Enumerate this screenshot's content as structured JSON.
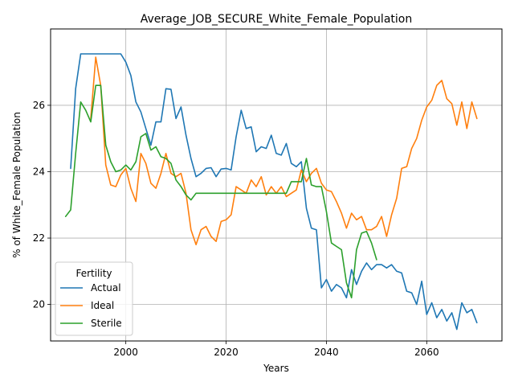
{
  "chart_data": {
    "type": "line",
    "title": "Average_JOB_SECURE_White_Female_Population",
    "xlabel": "Years",
    "ylabel": "% of White_Female Population",
    "xlim": [
      1985,
      2075
    ],
    "ylim": [
      18.9,
      28.3
    ],
    "xticks": [
      2000,
      2020,
      2040,
      2060
    ],
    "yticks": [
      20,
      22,
      24,
      26
    ],
    "grid": true,
    "legend": {
      "title": "Fertility",
      "position": "lower-left"
    },
    "series": [
      {
        "name": "Actual",
        "color": "#1f77b4",
        "x": [
          1989,
          1990,
          1991,
          1992,
          1993,
          1994,
          1995,
          1996,
          1997,
          1998,
          1999,
          2000,
          2001,
          2002,
          2003,
          2004,
          2005,
          2006,
          2007,
          2008,
          2009,
          2010,
          2011,
          2012,
          2013,
          2014,
          2015,
          2016,
          2017,
          2018,
          2019,
          2020,
          2021,
          2022,
          2023,
          2024,
          2025,
          2026,
          2027,
          2028,
          2029,
          2030,
          2031,
          2032,
          2033,
          2034,
          2035,
          2036,
          2037,
          2038,
          2039,
          2040,
          2041,
          2042,
          2043,
          2044,
          2045,
          2046,
          2047,
          2048,
          2049,
          2050,
          2051,
          2052,
          2053,
          2054,
          2055,
          2056,
          2057,
          2058,
          2059,
          2060,
          2061,
          2062,
          2063,
          2064,
          2065,
          2066,
          2067,
          2068,
          2069,
          2070
        ],
        "values": [
          24.1,
          26.5,
          27.55,
          27.55,
          27.55,
          27.55,
          27.55,
          27.55,
          27.55,
          27.55,
          27.55,
          27.3,
          26.9,
          26.1,
          25.8,
          25.3,
          24.8,
          25.5,
          25.5,
          26.5,
          26.48,
          25.6,
          25.95,
          25.1,
          24.4,
          23.85,
          23.95,
          24.1,
          24.12,
          23.85,
          24.08,
          24.1,
          24.05,
          25.05,
          25.85,
          25.3,
          25.35,
          24.6,
          24.75,
          24.7,
          25.1,
          24.55,
          24.5,
          24.85,
          24.25,
          24.15,
          24.3,
          22.9,
          22.3,
          22.25,
          20.5,
          20.75,
          20.4,
          20.6,
          20.5,
          20.2,
          21.05,
          20.6,
          21.0,
          21.25,
          21.05,
          21.2,
          21.2,
          21.1,
          21.2,
          21.0,
          20.95,
          20.4,
          20.35,
          20.0,
          20.7,
          19.7,
          20.05,
          19.6,
          19.85,
          19.5,
          19.75,
          19.25,
          20.05,
          19.75,
          19.85,
          19.45
        ]
      },
      {
        "name": "Ideal",
        "color": "#ff7f0e",
        "x": [
          1993,
          1994,
          1995,
          1996,
          1997,
          1998,
          1999,
          2000,
          2001,
          2002,
          2003,
          2004,
          2005,
          2006,
          2007,
          2008,
          2009,
          2010,
          2011,
          2012,
          2013,
          2014,
          2015,
          2016,
          2017,
          2018,
          2019,
          2020,
          2021,
          2022,
          2023,
          2024,
          2025,
          2026,
          2027,
          2028,
          2029,
          2030,
          2031,
          2032,
          2033,
          2034,
          2035,
          2036,
          2037,
          2038,
          2039,
          2040,
          2041,
          2042,
          2043,
          2044,
          2045,
          2046,
          2047,
          2048,
          2049,
          2050,
          2051,
          2052,
          2053,
          2054,
          2055,
          2056,
          2057,
          2058,
          2059,
          2060,
          2061,
          2062,
          2063,
          2064,
          2065,
          2066,
          2067,
          2068,
          2069,
          2070
        ],
        "values": [
          25.6,
          27.45,
          26.6,
          24.2,
          23.6,
          23.55,
          23.9,
          24.1,
          23.5,
          23.1,
          24.55,
          24.25,
          23.65,
          23.5,
          23.95,
          24.55,
          23.95,
          23.85,
          23.95,
          23.35,
          22.25,
          21.8,
          22.25,
          22.35,
          22.05,
          21.9,
          22.5,
          22.55,
          22.7,
          23.55,
          23.45,
          23.35,
          23.75,
          23.55,
          23.85,
          23.3,
          23.55,
          23.35,
          23.55,
          23.25,
          23.35,
          23.45,
          24.05,
          23.7,
          23.95,
          24.1,
          23.65,
          23.45,
          23.4,
          23.1,
          22.75,
          22.3,
          22.75,
          22.55,
          22.65,
          22.25,
          22.25,
          22.35,
          22.65,
          22.05,
          22.7,
          23.2,
          24.1,
          24.15,
          24.7,
          25.0,
          25.55,
          25.95,
          26.15,
          26.6,
          26.75,
          26.2,
          26.05,
          25.4,
          26.1,
          25.3,
          26.1,
          25.6
        ]
      },
      {
        "name": "Sterile",
        "color": "#2ca02c",
        "x": [
          1988,
          1989,
          1990,
          1991,
          1992,
          1993,
          1994,
          1995,
          1996,
          1997,
          1998,
          1999,
          2000,
          2001,
          2002,
          2003,
          2004,
          2005,
          2006,
          2007,
          2008,
          2009,
          2010,
          2011,
          2012,
          2013,
          2014,
          2015,
          2016,
          2017,
          2018,
          2019,
          2020,
          2021,
          2022,
          2023,
          2024,
          2025,
          2026,
          2027,
          2028,
          2029,
          2030,
          2031,
          2032,
          2033,
          2034,
          2035,
          2036,
          2037,
          2038,
          2039,
          2040,
          2041,
          2042,
          2043,
          2044,
          2045,
          2046,
          2047,
          2048,
          2049,
          2050
        ],
        "values": [
          22.65,
          22.85,
          24.55,
          26.1,
          25.85,
          25.5,
          26.6,
          26.6,
          24.8,
          24.3,
          24.0,
          24.05,
          24.2,
          24.05,
          24.3,
          25.05,
          25.15,
          24.65,
          24.75,
          24.45,
          24.4,
          24.25,
          23.75,
          23.55,
          23.3,
          23.15,
          23.35,
          23.35,
          23.35,
          23.35,
          23.35,
          23.35,
          23.35,
          23.35,
          23.35,
          23.35,
          23.35,
          23.35,
          23.35,
          23.35,
          23.35,
          23.35,
          23.35,
          23.35,
          23.35,
          23.7,
          23.7,
          23.7,
          24.4,
          23.6,
          23.55,
          23.55,
          22.8,
          21.85,
          21.75,
          21.65,
          20.65,
          20.2,
          21.65,
          22.15,
          22.2,
          21.85,
          21.35
        ]
      }
    ]
  }
}
